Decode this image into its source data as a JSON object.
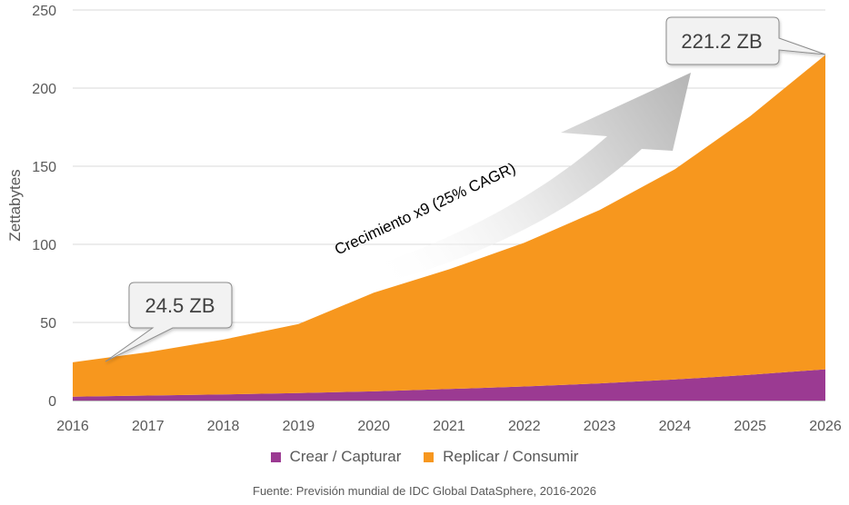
{
  "chart_data": {
    "type": "area",
    "stacked": true,
    "x": [
      "2016",
      "2017",
      "2018",
      "2019",
      "2020",
      "2021",
      "2022",
      "2023",
      "2024",
      "2025",
      "2026"
    ],
    "series": [
      {
        "name": "Crear / Capturar",
        "color": "#9b3a92",
        "values": [
          2.5,
          3.2,
          3.9,
          4.8,
          5.9,
          7.4,
          9.0,
          11.0,
          13.5,
          16.5,
          20.0
        ]
      },
      {
        "name": "Replicar / Consumir",
        "color": "#f7971e",
        "values": [
          22.0,
          27.8,
          35.1,
          44.2,
          63.1,
          76.6,
          92.0,
          111.0,
          134.5,
          165.5,
          201.2
        ]
      }
    ],
    "ylabel": "Zettabytes",
    "xlabel": "",
    "ylim": [
      0,
      250
    ],
    "yticks": [
      0,
      50,
      100,
      150,
      200,
      250
    ],
    "grid": true,
    "legend_position": "bottom",
    "annotations": {
      "start_callout": "24.5 ZB",
      "end_callout": "221.2 ZB",
      "growth_label": "Crecimiento x9 (25% CAGR)"
    }
  },
  "source_text": "Fuente: Previsión mundial de IDC Global DataSphere, 2016-2026"
}
